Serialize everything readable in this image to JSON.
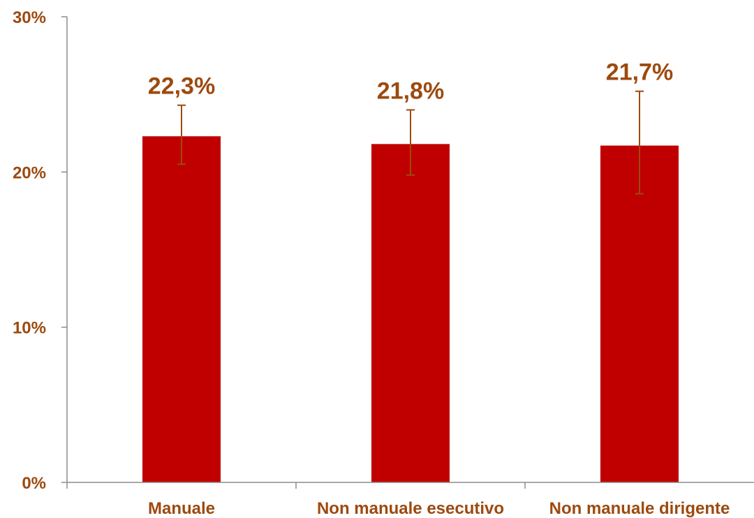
{
  "chart_data": {
    "type": "bar",
    "categories": [
      "Manuale",
      "Non manuale esecutivo",
      "Non manuale dirigente"
    ],
    "values": [
      22.3,
      21.8,
      21.7
    ],
    "data_labels": [
      "22,3%",
      "21,8%",
      "21,7%"
    ],
    "error_bars": [
      {
        "low": 20.5,
        "high": 24.3
      },
      {
        "low": 19.8,
        "high": 24.0
      },
      {
        "low": 18.6,
        "high": 25.2
      }
    ],
    "ylim": [
      0,
      30
    ],
    "y_ticks": [
      0,
      10,
      20,
      30
    ],
    "y_tick_labels": [
      "0%",
      "10%",
      "20%",
      "30%"
    ],
    "grid": false,
    "colors": {
      "bar": "#c00000",
      "text": "#9c4a0f",
      "error_bar": "#9c4a0f",
      "axis": "#8c8c8c"
    }
  }
}
